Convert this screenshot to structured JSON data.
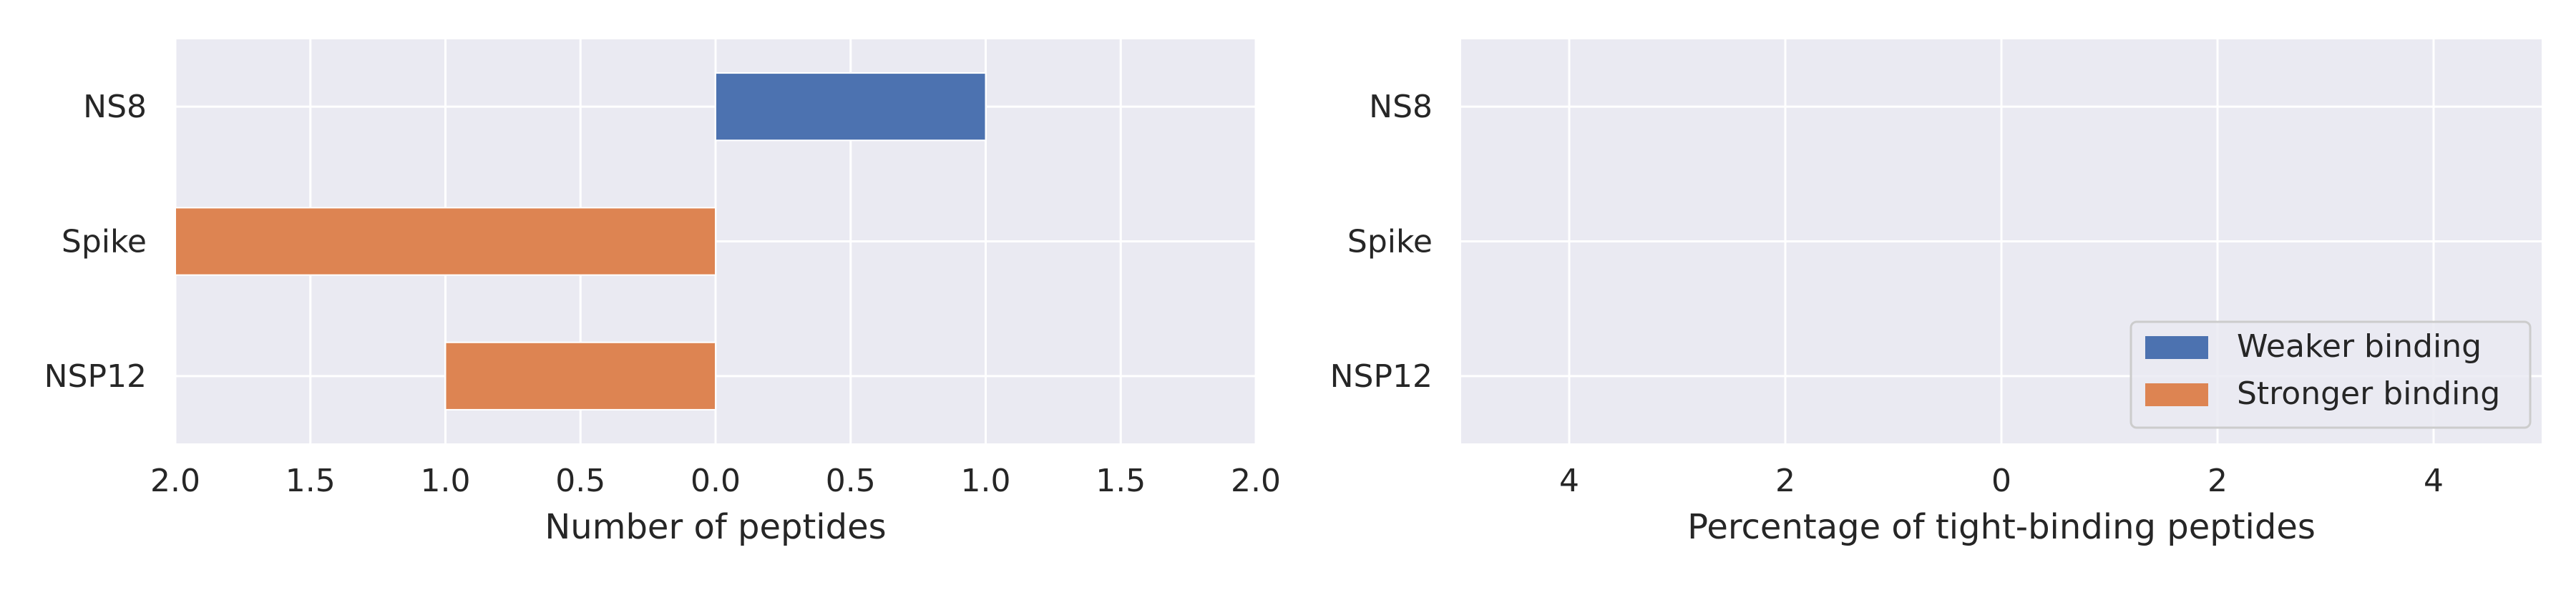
{
  "chart_data": [
    {
      "type": "bar",
      "orientation": "horizontal",
      "categories": [
        "NS8",
        "Spike",
        "NSP12"
      ],
      "series": [
        {
          "name": "Weaker binding",
          "values": [
            1,
            0,
            0
          ],
          "direction": "right",
          "color": "#4c72b0"
        },
        {
          "name": "Stronger binding",
          "values": [
            0,
            2,
            1
          ],
          "direction": "left",
          "color": "#dd8452"
        }
      ],
      "xlabel": "Number of peptides",
      "ylabel": "",
      "xlim": [
        -2,
        2
      ],
      "xticks": [
        -2,
        -1.5,
        -1,
        -0.5,
        0,
        0.5,
        1,
        1.5,
        2
      ],
      "xtick_labels": [
        "2.0",
        "1.5",
        "1.0",
        "0.5",
        "0.0",
        "0.5",
        "1.0",
        "1.5",
        "2.0"
      ],
      "grid": true,
      "background": "#eaeaf2"
    },
    {
      "type": "bar",
      "orientation": "horizontal",
      "categories": [
        "NS8",
        "Spike",
        "NSP12"
      ],
      "series": [
        {
          "name": "Weaker binding",
          "values": [
            0,
            0,
            0
          ],
          "direction": "right",
          "color": "#4c72b0"
        },
        {
          "name": "Stronger binding",
          "values": [
            0,
            0,
            0
          ],
          "direction": "left",
          "color": "#dd8452"
        }
      ],
      "xlabel": "Percentage of tight-binding peptides",
      "ylabel": "",
      "xlim": [
        -5,
        5
      ],
      "xticks": [
        -4,
        -2,
        0,
        2,
        4
      ],
      "xtick_labels": [
        "4",
        "2",
        "0",
        "2",
        "4"
      ],
      "grid": true,
      "background": "#eaeaf2",
      "legend": {
        "placement": "lower-right",
        "entries": [
          {
            "label": "Weaker binding",
            "color": "#4c72b0"
          },
          {
            "label": "Stronger binding",
            "color": "#dd8452"
          }
        ]
      }
    }
  ]
}
